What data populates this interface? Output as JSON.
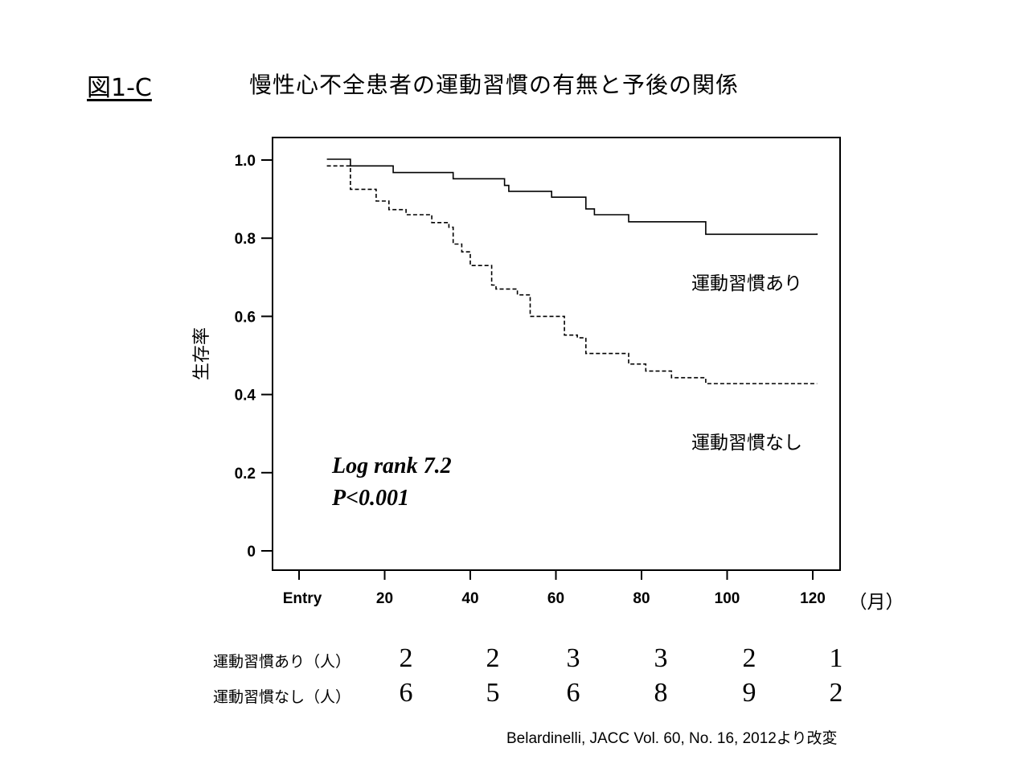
{
  "figure": {
    "label": "図1-C",
    "title": "慢性心不全患者の運動習慣の有無と予後の関係",
    "citation": "Belardinelli, JACC Vol. 60, No. 16, 2012より改変"
  },
  "chart_data": {
    "type": "line",
    "title": "",
    "ylabel": "生存率",
    "xlabel": "",
    "x_unit_label": "（月）",
    "ylim": [
      0,
      1.05
    ],
    "xlim": [
      0,
      125
    ],
    "y_ticks": [
      {
        "value": 0,
        "label": "0"
      },
      {
        "value": 0.2,
        "label": "0.2"
      },
      {
        "value": 0.4,
        "label": "0.4"
      },
      {
        "value": 0.6,
        "label": "0.6"
      },
      {
        "value": 0.8,
        "label": "0.8"
      },
      {
        "value": 1.0,
        "label": "1.0"
      }
    ],
    "x_ticks": [
      {
        "value": 0,
        "label": "Entry"
      },
      {
        "value": 20,
        "label": "20"
      },
      {
        "value": 40,
        "label": "40"
      },
      {
        "value": 60,
        "label": "60"
      },
      {
        "value": 80,
        "label": "80"
      },
      {
        "value": 100,
        "label": "100"
      },
      {
        "value": 120,
        "label": "120"
      }
    ],
    "grid": false,
    "legend": "none",
    "annotation": [
      "Log rank 7.2",
      "P<0.001"
    ],
    "series": [
      {
        "name": "運動習慣あり",
        "style": "solid",
        "steps": [
          [
            6.5,
            1.002
          ],
          [
            12,
            0.985
          ],
          [
            22,
            0.968
          ],
          [
            36,
            0.952
          ],
          [
            48,
            0.935
          ],
          [
            49,
            0.92
          ],
          [
            59,
            0.905
          ],
          [
            67,
            0.875
          ],
          [
            69,
            0.86
          ],
          [
            77,
            0.842
          ],
          [
            95,
            0.81
          ],
          [
            117,
            0.81
          ],
          [
            121,
            0.812
          ]
        ]
      },
      {
        "name": "運動習慣なし",
        "style": "dashed",
        "steps": [
          [
            6.5,
            0.985
          ],
          [
            12,
            0.925
          ],
          [
            18,
            0.895
          ],
          [
            21,
            0.873
          ],
          [
            25,
            0.86
          ],
          [
            31,
            0.84
          ],
          [
            35,
            0.828
          ],
          [
            36,
            0.785
          ],
          [
            38,
            0.765
          ],
          [
            40,
            0.73
          ],
          [
            45,
            0.68
          ],
          [
            46,
            0.67
          ],
          [
            51,
            0.655
          ],
          [
            54,
            0.6
          ],
          [
            62,
            0.552
          ],
          [
            65,
            0.545
          ],
          [
            67,
            0.505
          ],
          [
            77,
            0.478
          ],
          [
            81,
            0.46
          ],
          [
            87,
            0.443
          ],
          [
            95,
            0.428
          ],
          [
            121,
            0.428
          ]
        ]
      }
    ]
  },
  "risk_table": {
    "rows": [
      {
        "label": "運動習慣あり（人）",
        "values": [
          "2",
          "2",
          "3",
          "3",
          "2",
          "1"
        ]
      },
      {
        "label": "運動習慣なし（人）",
        "values": [
          "6",
          "5",
          "6",
          "8",
          "9",
          "2"
        ]
      }
    ]
  }
}
